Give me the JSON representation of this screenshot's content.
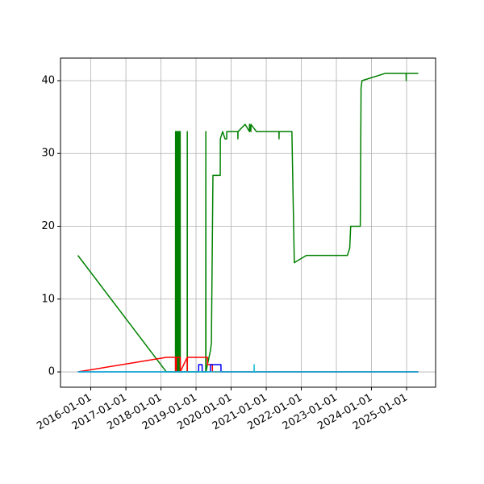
{
  "chart_data": {
    "type": "line",
    "grid": true,
    "xlim": [
      "2015-02-20",
      "2025-10-30"
    ],
    "xticks": [
      "2016-01-01",
      "2017-01-01",
      "2018-01-01",
      "2019-01-01",
      "2020-01-01",
      "2021-01-01",
      "2022-01-01",
      "2023-01-01",
      "2024-01-01",
      "2025-01-01"
    ],
    "ylim": [
      -2.1,
      43.1
    ],
    "yticks": [
      0,
      10,
      20,
      30,
      40
    ],
    "series": [
      {
        "color": "#008000",
        "x": [
          "2015-08-20",
          "2018-02-26",
          "2018-06-01",
          "2018-06-02",
          "2018-06-10",
          "2018-06-11",
          "2018-06-20",
          "2018-06-21",
          "2018-07-01",
          "2018-07-02",
          "2018-07-10",
          "2018-07-11",
          "2018-07-20",
          "2018-07-21",
          "2018-10-01",
          "2018-10-02",
          "2018-10-03",
          "2019-04-12",
          "2019-04-13",
          "2019-04-14",
          "2019-06-01",
          "2019-06-10",
          "2019-06-26",
          "2019-09-10",
          "2019-09-11",
          "2019-10-05",
          "2019-10-30",
          "2019-11-16",
          "2019-11-17",
          "2020-03-11",
          "2020-03-12",
          "2020-03-13",
          "2020-05-26",
          "2020-07-10",
          "2020-07-11",
          "2020-07-25",
          "2020-07-26",
          "2020-09-21",
          "2020-10-24",
          "2021-05-13",
          "2021-05-14",
          "2021-05-15",
          "2021-09-25",
          "2021-10-20",
          "2022-02-23",
          "2023-04-26",
          "2023-05-20",
          "2023-05-30",
          "2023-09-07",
          "2023-09-15",
          "2023-09-25",
          "2024-05-24",
          "2024-12-27",
          "2024-12-28",
          "2024-12-29",
          "2025-05-03"
        ],
        "values": [
          16,
          0,
          0,
          33,
          33,
          0,
          0,
          33,
          33,
          0,
          0,
          33,
          33,
          0,
          0,
          33,
          0,
          0,
          33,
          0,
          3,
          4,
          27,
          27,
          32,
          33,
          32,
          32,
          33,
          33,
          32,
          33,
          34,
          33,
          34,
          33,
          34,
          33,
          33,
          33,
          32,
          33,
          33,
          15,
          16,
          16,
          17,
          20,
          20,
          39,
          40,
          41,
          41,
          40,
          41,
          41
        ]
      },
      {
        "color": "#ff0000",
        "x": [
          "2015-08-20",
          "2018-02-26",
          "2018-06-01",
          "2018-06-02",
          "2018-06-10",
          "2018-06-11",
          "2018-07-20",
          "2018-07-21",
          "2018-10-01",
          "2018-10-02",
          "2018-10-03",
          "2019-04-30",
          "2019-05-01",
          "2019-06-20",
          "2019-06-21",
          "2025-05-03"
        ],
        "values": [
          0,
          2,
          2,
          0,
          0,
          2,
          2,
          0,
          2,
          0,
          2,
          2,
          1,
          1,
          0,
          0
        ]
      },
      {
        "color": "#0000ff",
        "x": [
          "2015-08-20",
          "2019-01-28",
          "2019-01-29",
          "2019-03-05",
          "2019-03-06",
          "2019-05-31",
          "2019-06-01",
          "2019-09-17",
          "2019-09-18",
          "2025-05-03"
        ],
        "values": [
          0,
          0,
          1,
          1,
          0,
          0,
          1,
          1,
          0,
          0
        ]
      },
      {
        "color": "#17becf",
        "x": [
          "2015-08-20",
          "2020-08-27",
          "2020-08-28",
          "2020-08-29",
          "2025-05-03"
        ],
        "values": [
          0,
          0,
          1,
          0,
          0
        ]
      }
    ]
  }
}
